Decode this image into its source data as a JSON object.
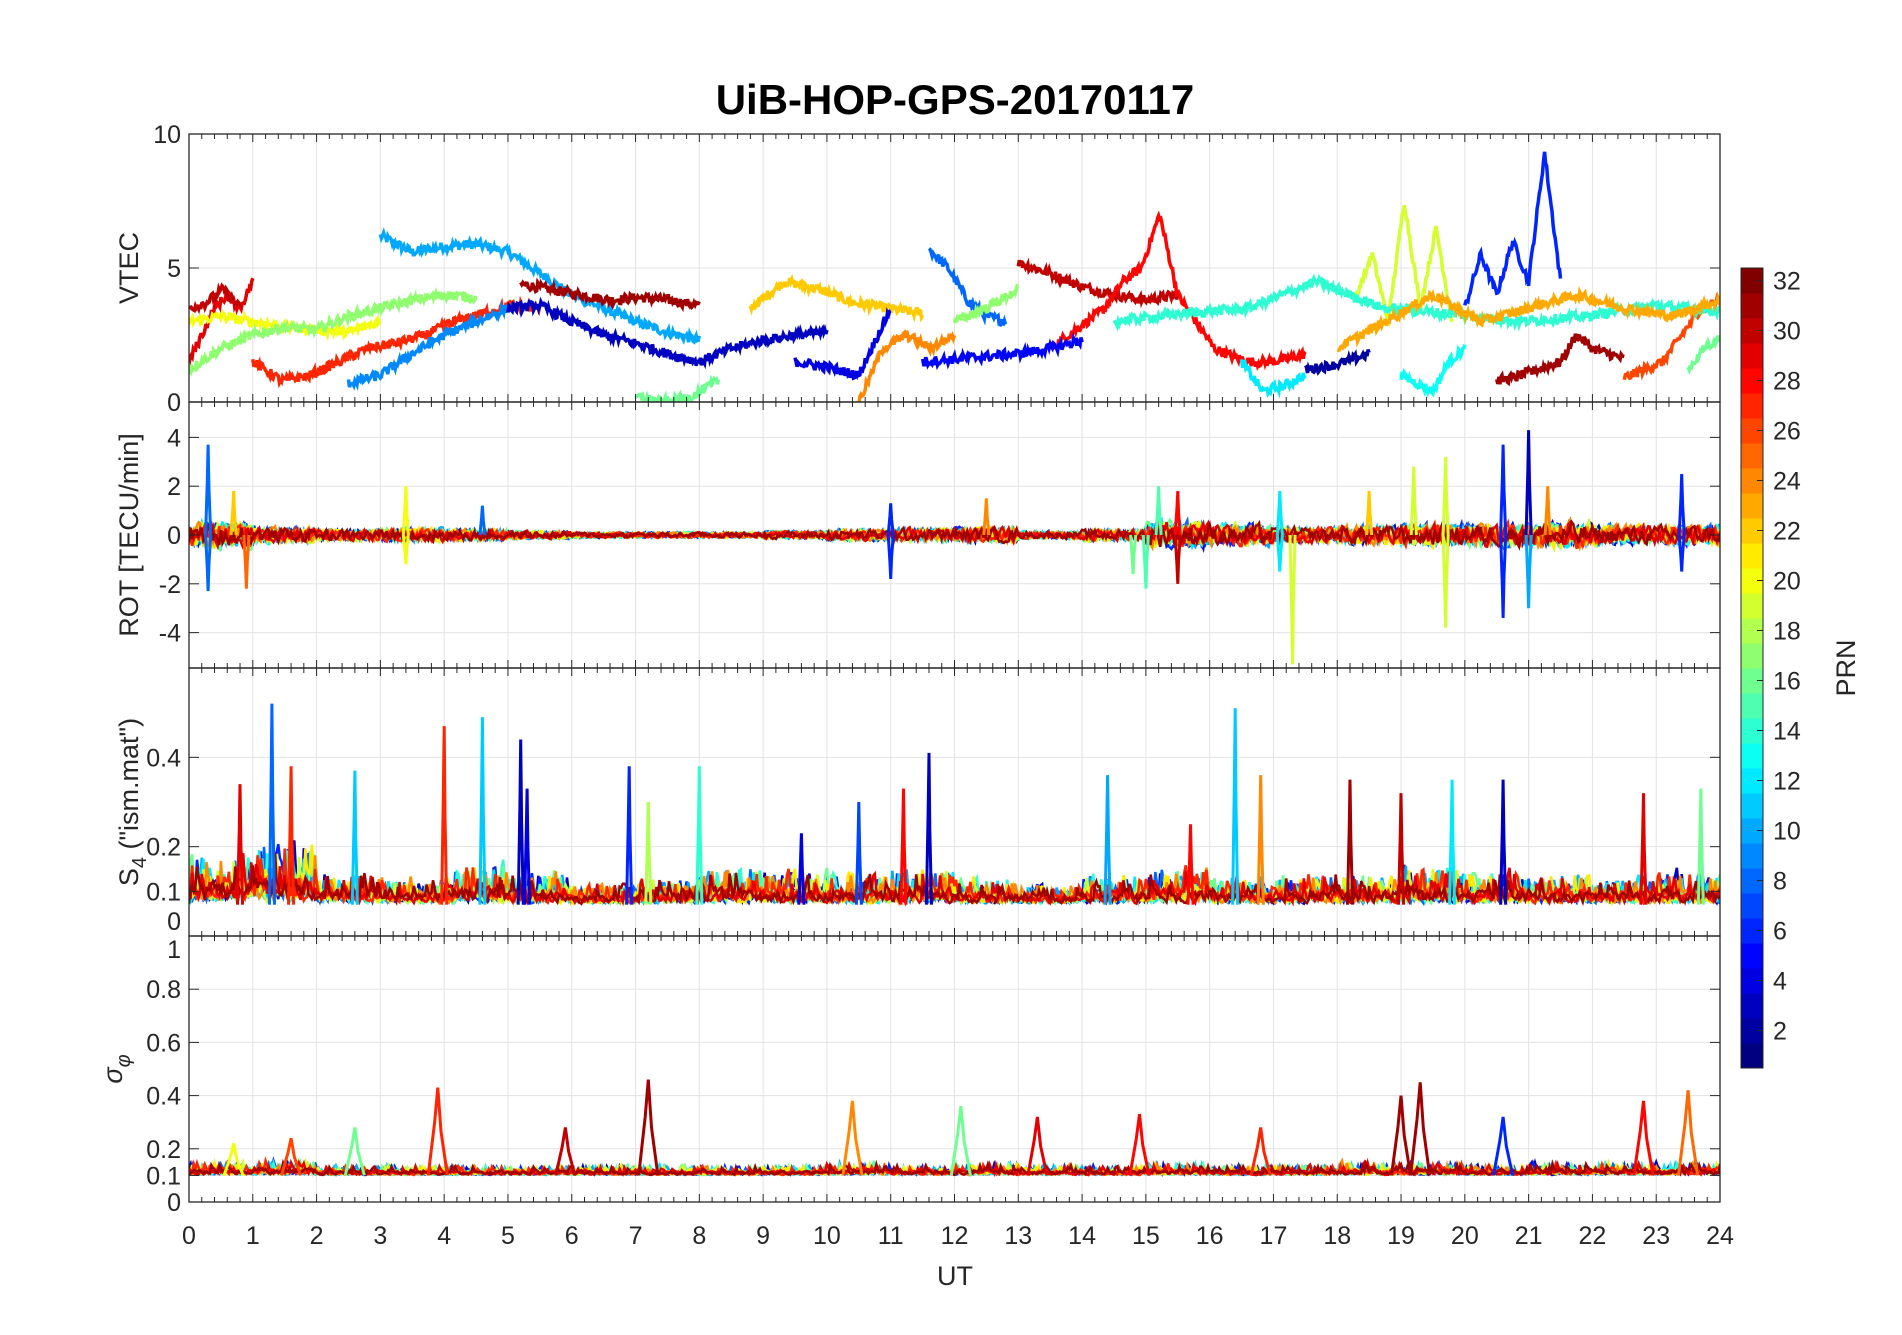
{
  "chart_data": {
    "type": "line",
    "title": "UiB-HOP-GPS-20170117",
    "xlabel": "UT",
    "xlim": [
      0,
      24
    ],
    "xticks": [
      "0",
      "1",
      "2",
      "3",
      "4",
      "5",
      "6",
      "7",
      "8",
      "9",
      "10",
      "11",
      "12",
      "13",
      "14",
      "15",
      "16",
      "17",
      "18",
      "19",
      "20",
      "21",
      "22",
      "23",
      "24"
    ],
    "colorbar": {
      "label": "PRN",
      "range": [
        1,
        32
      ],
      "levels": 32,
      "colormap": "jet",
      "ticks": [
        "2",
        "4",
        "6",
        "8",
        "10",
        "12",
        "14",
        "16",
        "18",
        "20",
        "22",
        "24",
        "26",
        "28",
        "30",
        "32"
      ]
    },
    "panels": [
      {
        "id": "vtec",
        "ylabel": "VTEC",
        "ylim": [
          0,
          10
        ],
        "yticks": [
          0,
          5,
          10
        ],
        "ytick_labels": [
          "0",
          "5",
          "10"
        ],
        "tracks": [
          {
            "prn": 10,
            "start": 3.0,
            "end": 8.0,
            "values": [
              6.2,
              5.6,
              5.8,
              5.9,
              5.6,
              4.8,
              4.0,
              3.5,
              3.0,
              2.6,
              2.3
            ]
          },
          {
            "prn": 31,
            "start": 5.2,
            "end": 8.0,
            "values": [
              4.4,
              4.2,
              4.0,
              3.8,
              3.9,
              3.8,
              3.6
            ]
          },
          {
            "prn": 22,
            "start": 8.8,
            "end": 11.5,
            "values": [
              3.5,
              4.5,
              4.2,
              3.7,
              3.5,
              3.3
            ]
          },
          {
            "prn": 8,
            "start": 11.6,
            "end": 12.8,
            "values": [
              5.7,
              5.0,
              3.8,
              3.2,
              3.0
            ]
          },
          {
            "prn": 30,
            "start": 13.0,
            "end": 15.5,
            "values": [
              5.2,
              4.8,
              4.3,
              4.0,
              3.8,
              4.0
            ]
          },
          {
            "prn": 28,
            "start": 13.5,
            "end": 17.5,
            "values": [
              2.0,
              2.5,
              3.0,
              3.5,
              4.5,
              5.0,
              7.0,
              4.0,
              3.0,
              2.0,
              1.7,
              1.5,
              1.5,
              1.6,
              1.8
            ]
          },
          {
            "prn": 6,
            "start": 20.0,
            "end": 21.5,
            "values": [
              3.5,
              5.5,
              4.0,
              6.0,
              4.5,
              9.3,
              4.5
            ]
          },
          {
            "prn": 19,
            "start": 18.3,
            "end": 19.8,
            "values": [
              4.0,
              5.5,
              3.0,
              7.5,
              3.5,
              6.5,
              3.0
            ]
          },
          {
            "prn": 31,
            "start": 20.5,
            "end": 22.5,
            "values": [
              0.8,
              0.9,
              1.1,
              1.3,
              1.5,
              2.5,
              2.0,
              1.8,
              1.6
            ]
          },
          {
            "prn": 26,
            "start": 22.5,
            "end": 24.0,
            "values": [
              0.9,
              1.2,
              1.5,
              2.5,
              3.5,
              3.8
            ]
          },
          {
            "prn": 16,
            "start": 23.5,
            "end": 24.0,
            "values": [
              1.2,
              2.0,
              2.4
            ]
          },
          {
            "prn": 13,
            "start": 19.0,
            "end": 20.0,
            "values": [
              1.0,
              0.7,
              0.4,
              1.5,
              2.0
            ]
          },
          {
            "prn": 12,
            "start": 16.5,
            "end": 17.5,
            "values": [
              1.5,
              0.4,
              0.6,
              1.0
            ]
          },
          {
            "prn": 2,
            "start": 17.5,
            "end": 18.5,
            "values": [
              1.2,
              1.4,
              1.8
            ]
          },
          {
            "prn": 29,
            "start": 0.0,
            "end": 1.0,
            "values": [
              1.5,
              2.5,
              3.5,
              4.0,
              3.5,
              4.5
            ]
          },
          {
            "prn": 30,
            "start": 0.0,
            "end": 0.8,
            "values": [
              3.5,
              3.7,
              4.2,
              3.5
            ]
          },
          {
            "prn": 20,
            "start": 0.0,
            "end": 3.0,
            "values": [
              3.0,
              3.2,
              3.0,
              2.8,
              2.7,
              2.6,
              3.0
            ]
          },
          {
            "prn": 17,
            "start": 0.0,
            "end": 4.5,
            "values": [
              1.2,
              2.0,
              2.5,
              2.8,
              2.7,
              3.2,
              3.5,
              3.8,
              4.0,
              3.9
            ]
          },
          {
            "prn": 27,
            "start": 1.0,
            "end": 5.5,
            "values": [
              1.5,
              0.8,
              1.0,
              1.5,
              2.0,
              2.2,
              2.5,
              3.0,
              3.3,
              3.6,
              3.5
            ]
          },
          {
            "prn": 9,
            "start": 2.5,
            "end": 5.0,
            "values": [
              0.7,
              1.0,
              1.8,
              2.5,
              3.0,
              3.5
            ]
          },
          {
            "prn": 3,
            "start": 5.0,
            "end": 10.0,
            "values": [
              3.5,
              3.6,
              3.0,
              2.5,
              2.2,
              1.8,
              1.5,
              2.0,
              2.3,
              2.5,
              2.6
            ]
          },
          {
            "prn": 4,
            "start": 9.5,
            "end": 11.0,
            "values": [
              1.5,
              1.3,
              1.0,
              3.5
            ]
          },
          {
            "prn": 24,
            "start": 10.5,
            "end": 12.0,
            "values": [
              0.0,
              2.0,
              2.5,
              2.0,
              2.5
            ]
          },
          {
            "prn": 5,
            "start": 11.5,
            "end": 14.0,
            "values": [
              1.5,
              1.6,
              1.7,
              1.8,
              2.0,
              2.3
            ]
          },
          {
            "prn": 17,
            "start": 12.0,
            "end": 13.0,
            "values": [
              3.0,
              3.5,
              4.2
            ]
          },
          {
            "prn": 16,
            "start": 7.0,
            "end": 8.3,
            "values": [
              0.2,
              0.0,
              0.2,
              0.8
            ]
          },
          {
            "prn": 14,
            "start": 14.5,
            "end": 24.0,
            "values": [
              3.0,
              3.3,
              3.5,
              4.5,
              3.5,
              3.3,
              3.0,
              3.2,
              3.6,
              3.4
            ]
          },
          {
            "prn": 23,
            "start": 18.0,
            "end": 24.0,
            "values": [
              2.0,
              3.0,
              4.0,
              3.0,
              3.5,
              4.0,
              3.5,
              3.2,
              3.8
            ]
          }
        ]
      },
      {
        "id": "rot",
        "ylabel": "ROT [TECU/min]",
        "ylim": [
          -5.45,
          5.45
        ],
        "yticks": [
          -4,
          -2,
          0,
          2,
          4
        ],
        "ytick_labels": [
          "-4",
          "-2",
          "0",
          "2",
          "4"
        ],
        "baseline": 0,
        "noise_envelope": [
          0.7,
          0.4,
          0.3,
          0.35,
          0.3,
          0.2,
          0.15,
          0.15,
          0.15,
          0.2,
          0.3,
          0.35,
          0.4,
          0.2,
          0.3,
          0.7,
          0.6,
          0.4,
          0.5,
          0.6,
          0.6,
          0.7,
          0.5,
          0.5
        ],
        "spikes": [
          [
            0.3,
            3.7,
            8
          ],
          [
            0.3,
            -2.3,
            8
          ],
          [
            0.9,
            -2.2,
            25
          ],
          [
            0.7,
            1.8,
            22
          ],
          [
            3.4,
            2,
            20
          ],
          [
            3.4,
            -1.2,
            20
          ],
          [
            4.6,
            1.2,
            8
          ],
          [
            11,
            1.3,
            6
          ],
          [
            11,
            -1.8,
            6
          ],
          [
            12.5,
            1.5,
            24
          ],
          [
            15.2,
            2,
            15
          ],
          [
            15,
            -2.2,
            15
          ],
          [
            15.5,
            1.8,
            28
          ],
          [
            15.5,
            -2,
            30
          ],
          [
            17.1,
            1.8,
            12
          ],
          [
            17.3,
            -5.3,
            19
          ],
          [
            17.1,
            -1.5,
            12
          ],
          [
            19.2,
            2.8,
            19
          ],
          [
            19.7,
            3.2,
            19
          ],
          [
            19.7,
            -3.8,
            19
          ],
          [
            20.6,
            3.7,
            6
          ],
          [
            20.6,
            -3.4,
            6
          ],
          [
            21,
            4.3,
            3
          ],
          [
            21,
            -3,
            10
          ],
          [
            21.3,
            2,
            24
          ],
          [
            23.4,
            2.5,
            6
          ],
          [
            23.4,
            -1.5,
            6
          ],
          [
            18.5,
            1.8,
            22
          ],
          [
            14.8,
            -1.6,
            16
          ]
        ]
      },
      {
        "id": "s4",
        "ylabel": "S4 (\"ism.mat\")",
        "ylim": [
          0,
          0.6
        ],
        "yticks": [
          0,
          0.1,
          0.2,
          0.4
        ],
        "ytick_labels": [
          "0",
          "0.1",
          "0.2",
          "0.4"
        ],
        "baseline": 0.07,
        "noise_envelope": [
          0.1,
          0.12,
          0.06,
          0.05,
          0.08,
          0.06,
          0.04,
          0.05,
          0.07,
          0.06,
          0.06,
          0.07,
          0.05,
          0.04,
          0.06,
          0.07,
          0.05,
          0.06,
          0.06,
          0.07,
          0.06,
          0.06,
          0.05,
          0.06
        ],
        "spikes": [
          [
            1.3,
            0.52,
            8
          ],
          [
            1.6,
            0.38,
            27
          ],
          [
            0.8,
            0.34,
            29
          ],
          [
            2.6,
            0.37,
            11
          ],
          [
            4,
            0.47,
            27
          ],
          [
            4.6,
            0.49,
            11
          ],
          [
            5.2,
            0.44,
            3
          ],
          [
            5.3,
            0.33,
            4
          ],
          [
            6.9,
            0.38,
            6
          ],
          [
            7.2,
            0.3,
            18
          ],
          [
            8,
            0.38,
            14
          ],
          [
            10.5,
            0.3,
            7
          ],
          [
            11.6,
            0.41,
            3
          ],
          [
            11.2,
            0.33,
            28
          ],
          [
            14.4,
            0.36,
            10
          ],
          [
            16.4,
            0.51,
            11
          ],
          [
            16.8,
            0.36,
            24
          ],
          [
            18.2,
            0.35,
            31
          ],
          [
            19.8,
            0.35,
            12
          ],
          [
            20.6,
            0.35,
            3
          ],
          [
            22.8,
            0.32,
            29
          ],
          [
            23.7,
            0.33,
            16
          ],
          [
            19,
            0.32,
            30
          ],
          [
            9.6,
            0.23,
            4
          ],
          [
            15.7,
            0.25,
            28
          ]
        ]
      },
      {
        "id": "sigma",
        "ylabel": "σφ",
        "ylim": [
          0,
          1
        ],
        "yticks": [
          0,
          0.1,
          0.2,
          0.4,
          0.6,
          0.8,
          1
        ],
        "ytick_labels": [
          "0",
          "0.1",
          "0.2",
          "0.4",
          "0.6",
          "0.8",
          "1"
        ],
        "baseline": 0.1,
        "noise_envelope": [
          0.04,
          0.05,
          0.03,
          0.03,
          0.03,
          0.03,
          0.03,
          0.03,
          0.03,
          0.03,
          0.04,
          0.03,
          0.04,
          0.03,
          0.03,
          0.04,
          0.03,
          0.03,
          0.04,
          0.04,
          0.03,
          0.04,
          0.04,
          0.04
        ],
        "spikes": [
          [
            3.9,
            0.43,
            27
          ],
          [
            7.2,
            0.46,
            31
          ],
          [
            10.4,
            0.38,
            24
          ],
          [
            12.1,
            0.36,
            16
          ],
          [
            19,
            0.4,
            31
          ],
          [
            19.3,
            0.45,
            31
          ],
          [
            20.6,
            0.32,
            6
          ],
          [
            22.8,
            0.38,
            28
          ],
          [
            23.5,
            0.42,
            25
          ],
          [
            2.6,
            0.28,
            16
          ],
          [
            5.9,
            0.28,
            30
          ],
          [
            14.9,
            0.33,
            28
          ],
          [
            16.8,
            0.28,
            27
          ],
          [
            13.3,
            0.32,
            29
          ],
          [
            0.7,
            0.22,
            20
          ],
          [
            1.6,
            0.24,
            26
          ]
        ]
      }
    ],
    "noise_prns": [
      3,
      6,
      8,
      10,
      12,
      14,
      16,
      19,
      21,
      24,
      27,
      29,
      31
    ],
    "grid": true
  }
}
